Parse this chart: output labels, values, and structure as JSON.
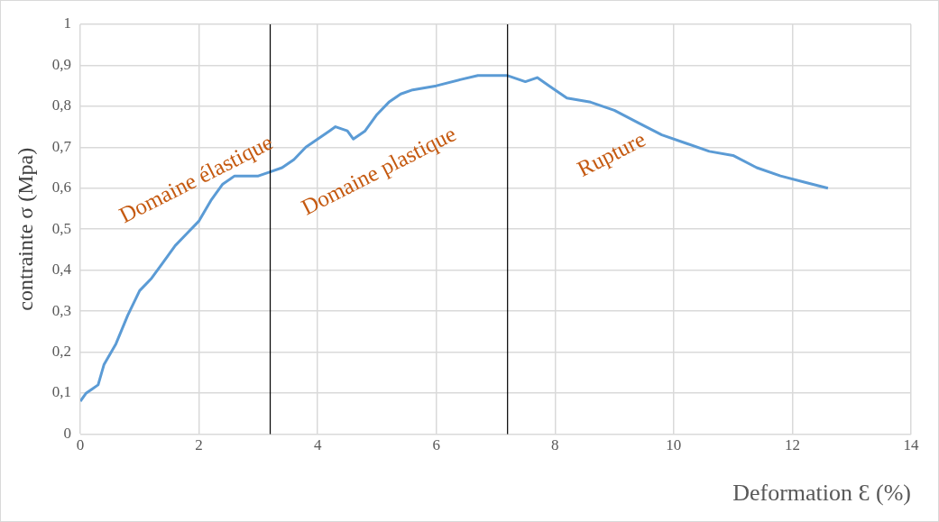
{
  "chart_data": {
    "type": "line",
    "xlabel": "Deformation Ɛ (%)",
    "ylabel": "contrainte σ (Mpa)",
    "xlim": [
      0,
      14
    ],
    "xticks": [
      0,
      2,
      4,
      6,
      8,
      10,
      12,
      14
    ],
    "ylim": [
      0,
      1
    ],
    "yticks": [
      0,
      {
        "value": 0.1,
        "label": "0,1"
      },
      {
        "value": 0.2,
        "label": "0,2"
      },
      {
        "value": 0.3,
        "label": "0,3"
      },
      {
        "value": 0.4,
        "label": "0,4"
      },
      {
        "value": 0.5,
        "label": "0,5"
      },
      {
        "value": 0.6,
        "label": "0,6"
      },
      {
        "value": 0.7,
        "label": "0,7"
      },
      {
        "value": 0.8,
        "label": "0,8"
      },
      {
        "value": 0.9,
        "label": "0,9"
      },
      1
    ],
    "grid": true,
    "legend": false,
    "marker": "none",
    "line_style": "solid",
    "series": [
      {
        "color": "#5b9bd5",
        "x": [
          0,
          0.1,
          0.2,
          0.3,
          0.4,
          0.6,
          0.8,
          1.0,
          1.2,
          1.4,
          1.6,
          1.8,
          2.0,
          2.2,
          2.4,
          2.6,
          3.0,
          3.2,
          3.4,
          3.6,
          3.8,
          4.0,
          4.2,
          4.3,
          4.5,
          4.6,
          4.8,
          5.0,
          5.2,
          5.4,
          5.6,
          6.0,
          6.4,
          6.7,
          7.2,
          7.5,
          7.7,
          7.9,
          8.2,
          8.6,
          9.0,
          9.4,
          9.8,
          10.2,
          10.6,
          11.0,
          11.4,
          11.8,
          12.2,
          12.6
        ],
        "values": [
          0.08,
          0.1,
          0.11,
          0.12,
          0.17,
          0.22,
          0.29,
          0.35,
          0.38,
          0.42,
          0.46,
          0.49,
          0.52,
          0.57,
          0.61,
          0.63,
          0.63,
          0.64,
          0.65,
          0.67,
          0.7,
          0.72,
          0.74,
          0.75,
          0.74,
          0.72,
          0.74,
          0.78,
          0.81,
          0.83,
          0.84,
          0.85,
          0.865,
          0.875,
          0.875,
          0.86,
          0.87,
          0.85,
          0.82,
          0.81,
          0.79,
          0.76,
          0.73,
          0.71,
          0.69,
          0.68,
          0.65,
          0.63,
          0.615,
          0.6
        ]
      }
    ],
    "ref_lines": [
      {
        "axis": "x",
        "value": 3.2,
        "color": "#000000"
      },
      {
        "axis": "x",
        "value": 7.2,
        "color": "#000000"
      }
    ],
    "annotations": [
      "Domaine élastique",
      "Domaine plastique",
      "Rupture"
    ]
  }
}
